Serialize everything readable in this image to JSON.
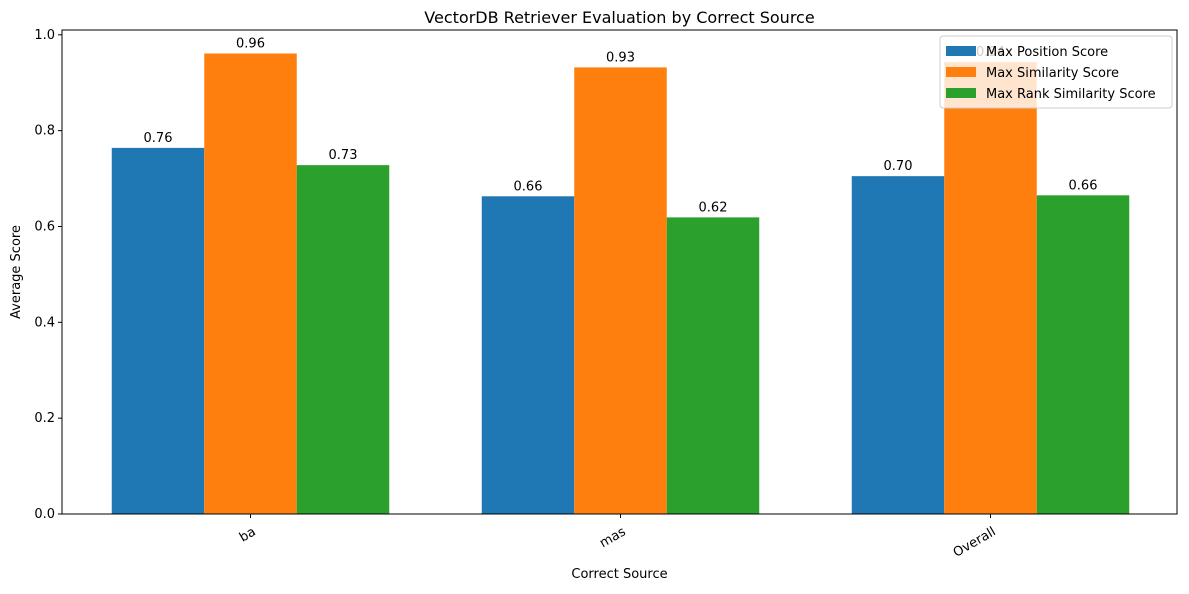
{
  "chart_data": {
    "type": "bar",
    "title": "VectorDB Retriever Evaluation by Correct Source",
    "xlabel": "Correct Source",
    "ylabel": "Average Score",
    "categories": [
      "ba",
      "mas",
      "Overall"
    ],
    "series": [
      {
        "name": "Max Position Score",
        "color": "#1f77b4",
        "values": [
          0.764,
          0.663,
          0.705
        ],
        "labels": [
          "0.76",
          "0.66",
          "0.70"
        ]
      },
      {
        "name": "Max Similarity Score",
        "color": "#ff7f0e",
        "values": [
          0.961,
          0.932,
          0.943
        ],
        "labels": [
          "0.96",
          "0.93",
          "0.94"
        ]
      },
      {
        "name": "Max Rank Similarity Score",
        "color": "#2ca02c",
        "values": [
          0.728,
          0.619,
          0.665
        ],
        "labels": [
          "0.73",
          "0.62",
          "0.66"
        ]
      }
    ],
    "ylim": [
      0,
      1.01
    ],
    "yticks": [
      0.0,
      0.2,
      0.4,
      0.6,
      0.8,
      1.0
    ],
    "ytick_labels": [
      "0.0",
      "0.2",
      "0.4",
      "0.6",
      "0.8",
      "1.0"
    ],
    "grid": false,
    "legend_position": "top-right",
    "xtick_rotation": "30 degrees"
  }
}
